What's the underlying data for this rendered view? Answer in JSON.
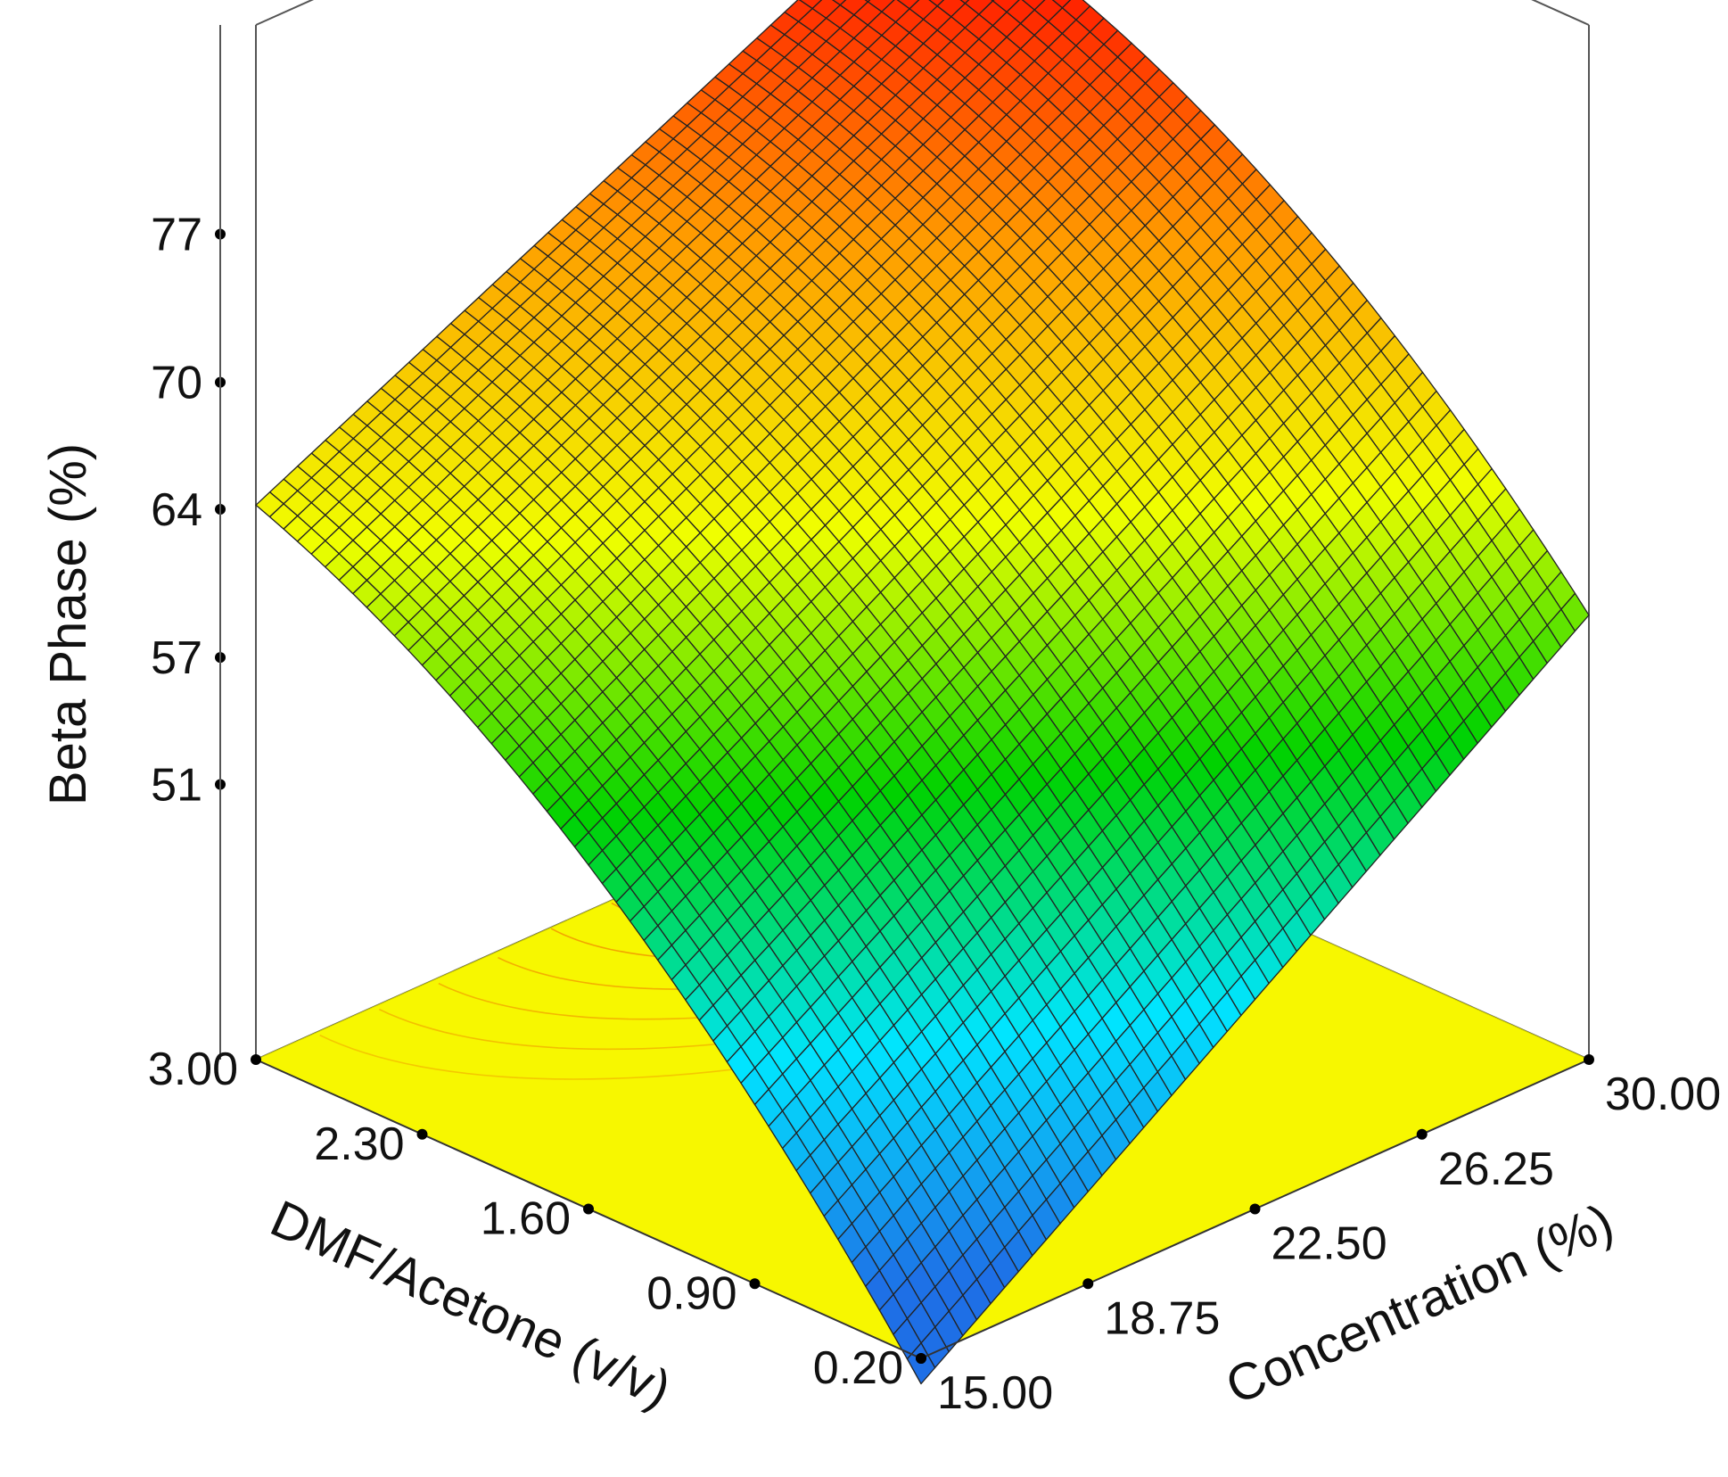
{
  "chart_data": {
    "type": "surface3d",
    "title": "",
    "x_axis": {
      "label": "DMF/Acetone (v/v)",
      "ticks": [
        3.0,
        2.3,
        1.6,
        0.9,
        0.2
      ],
      "tick_labels": [
        "3.00",
        "2.30",
        "1.60",
        "0.90",
        "0.20"
      ],
      "range": [
        0.2,
        3.0
      ]
    },
    "y_axis": {
      "label": "Concentration (%)",
      "ticks": [
        15.0,
        18.75,
        22.5,
        26.25,
        30.0
      ],
      "tick_labels": [
        "15.00",
        "18.75",
        "22.50",
        "26.25",
        "30.00"
      ],
      "range": [
        15.0,
        30.0
      ]
    },
    "z_axis": {
      "label": "Beta Phase (%)",
      "ticks": [
        51,
        57,
        64,
        70,
        77
      ],
      "tick_labels": [
        "51",
        "57",
        "64",
        "70",
        "77"
      ]
    },
    "corner_values": [
      {
        "dmf_acetone": 3.0,
        "concentration": 15.0,
        "beta_phase": 64.2
      },
      {
        "dmf_acetone": 3.0,
        "concentration": 30.0,
        "beta_phase": 79.5
      },
      {
        "dmf_acetone": 0.2,
        "concentration": 15.0,
        "beta_phase": 40.8
      },
      {
        "dmf_acetone": 0.2,
        "concentration": 30.0,
        "beta_phase": 63.0
      }
    ],
    "grid": true,
    "colormap": [
      "#1e6fe6",
      "#00e5ff",
      "#00d200",
      "#f0ff00",
      "#ff9a00",
      "#ff0000"
    ],
    "floor_color": "#f7f700",
    "contour_color": "#f08a00"
  }
}
